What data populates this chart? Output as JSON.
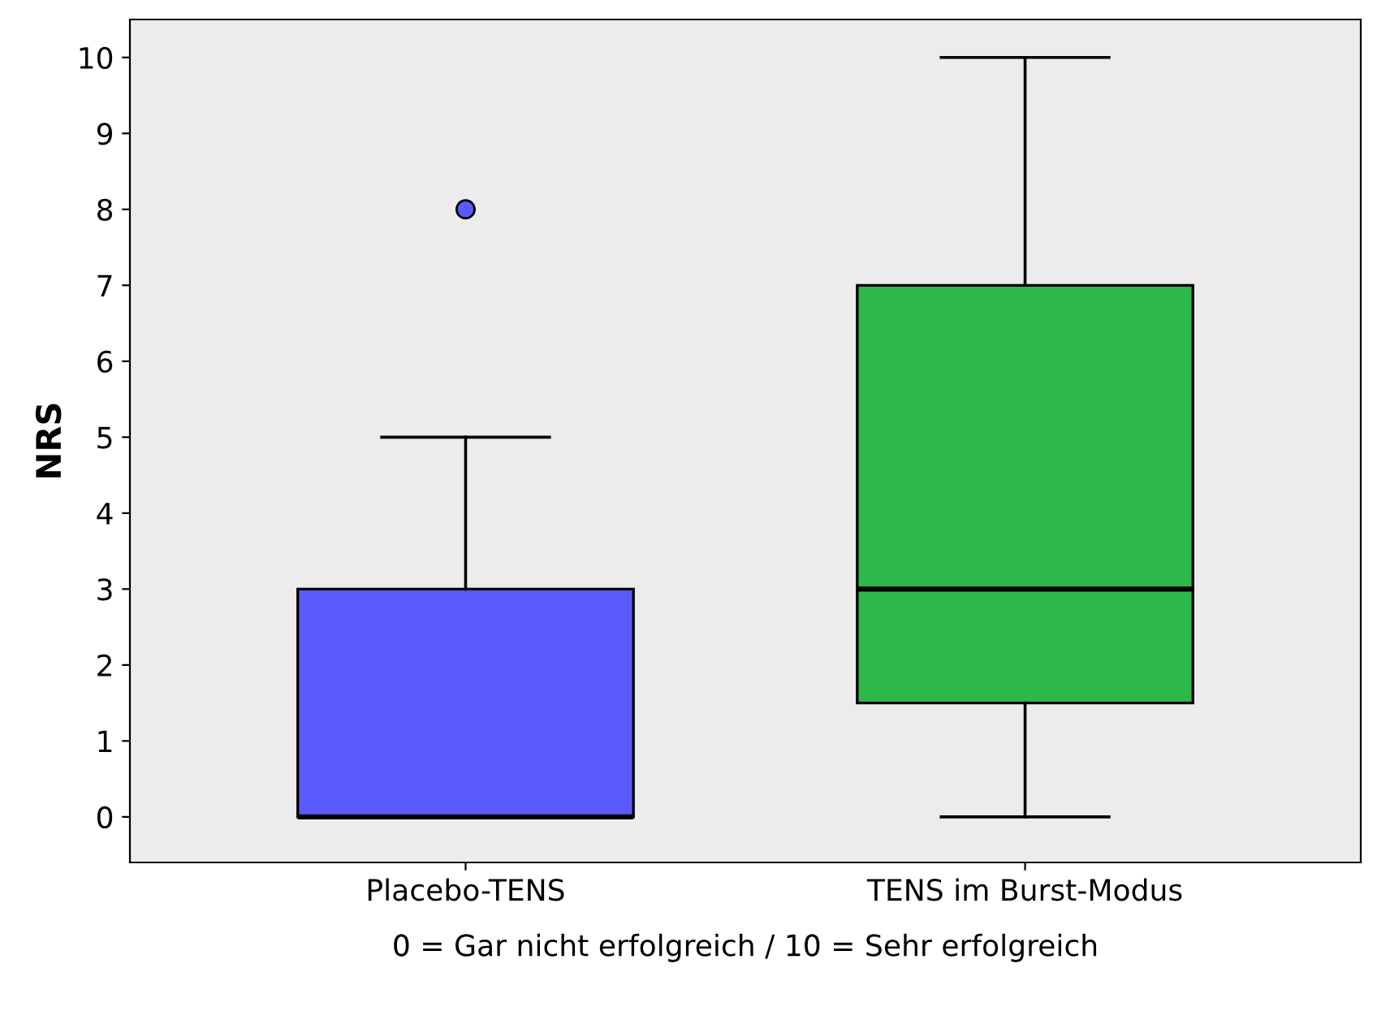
{
  "chart_data": {
    "type": "box",
    "categories": [
      "Placebo-TENS",
      "TENS im Burst-Modus"
    ],
    "boxes": [
      {
        "low": 0,
        "q1": 0,
        "median": 0,
        "q3": 3,
        "high": 5,
        "outliers": [
          8
        ]
      },
      {
        "low": 0,
        "q1": 1.5,
        "median": 3,
        "q3": 7,
        "high": 10
      }
    ],
    "colors": [
      "#5a5aff",
      "#2db84a"
    ],
    "ylabel": "NRS",
    "xlabel": "0 = Gar nicht erfolgreich / 10 = Sehr erfolgreich",
    "ylim": [
      -0.6,
      10.5
    ],
    "yticks": [
      0,
      1,
      2,
      3,
      4,
      5,
      6,
      7,
      8,
      9,
      10
    ],
    "grid": false
  }
}
